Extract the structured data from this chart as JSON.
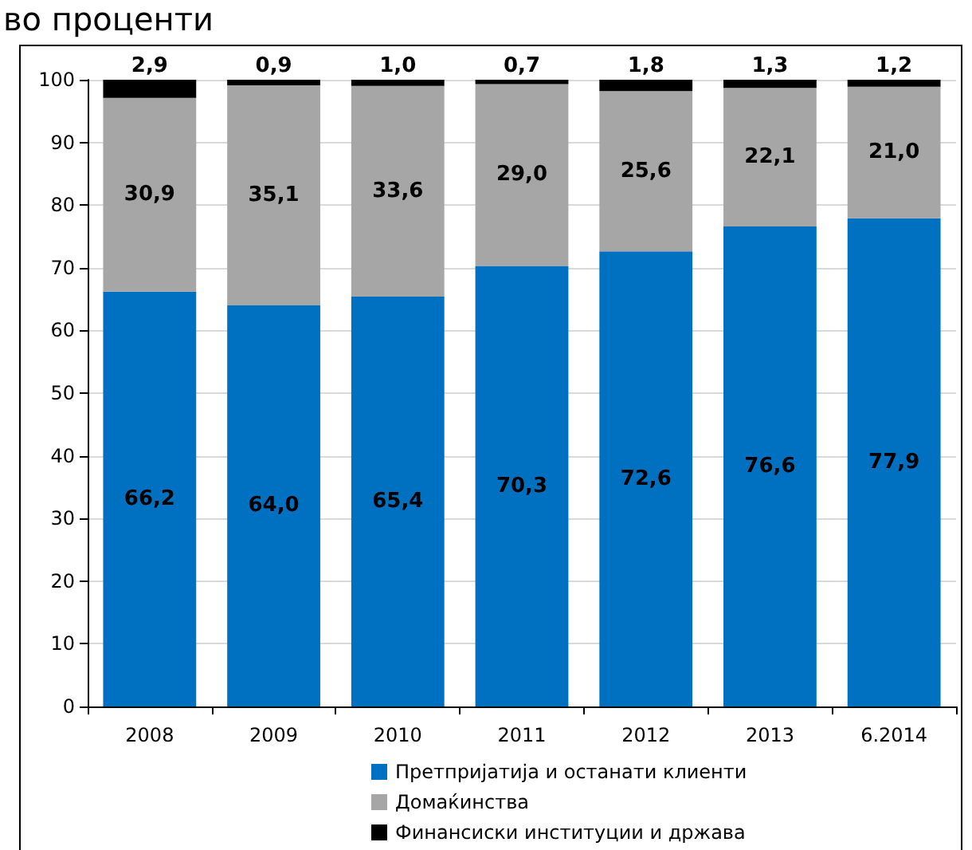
{
  "chart_data": {
    "type": "bar",
    "title": "во проценти",
    "stacked": true,
    "categories": [
      "2008",
      "2009",
      "2010",
      "2011",
      "2012",
      "2013",
      "6.2014"
    ],
    "series": [
      {
        "name": "Претпријатија и останати клиенти",
        "color": "#0070c0",
        "values": [
          66.2,
          64.0,
          65.4,
          70.3,
          72.6,
          76.6,
          77.9
        ],
        "value_labels": [
          "66,2",
          "64,0",
          "65,4",
          "70,3",
          "72,6",
          "76,6",
          "77,9"
        ]
      },
      {
        "name": "Домаќинства",
        "color": "#a6a6a6",
        "values": [
          30.9,
          35.1,
          33.6,
          29.0,
          25.6,
          22.1,
          21.0
        ],
        "value_labels": [
          "30,9",
          "35,1",
          "33,6",
          "29,0",
          "25,6",
          "22,1",
          "21,0"
        ]
      },
      {
        "name": "Финансиски институции и држава",
        "color": "#000000",
        "values": [
          2.9,
          0.9,
          1.0,
          0.7,
          1.8,
          1.3,
          1.2
        ],
        "value_labels": [
          "2,9",
          "0,9",
          "1,0",
          "0,7",
          "1,8",
          "1,3",
          "1,2"
        ]
      }
    ],
    "ylim": [
      0,
      100
    ],
    "yticks": [
      0,
      10,
      20,
      30,
      40,
      50,
      60,
      70,
      80,
      90,
      100
    ],
    "grid": "y",
    "legend": "bottom"
  }
}
